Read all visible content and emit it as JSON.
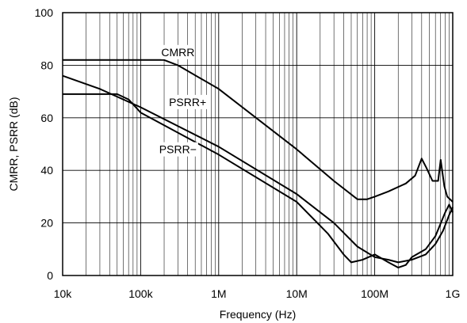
{
  "chart_data": {
    "type": "line",
    "title": "",
    "xlabel": "Frequency (Hz)",
    "ylabel": "CMRR, PSRR (dB)",
    "x_scale": "log",
    "xlim": [
      10000,
      1000000000
    ],
    "ylim": [
      0,
      100
    ],
    "grid": true,
    "x_ticks": [
      {
        "value": 10000,
        "label": "10k"
      },
      {
        "value": 100000,
        "label": "100k"
      },
      {
        "value": 1000000,
        "label": "1M"
      },
      {
        "value": 10000000,
        "label": "10M"
      },
      {
        "value": 100000000,
        "label": "100M"
      },
      {
        "value": 1000000000,
        "label": "1G"
      }
    ],
    "y_ticks": [
      {
        "value": 0,
        "label": "0"
      },
      {
        "value": 20,
        "label": "20"
      },
      {
        "value": 40,
        "label": "40"
      },
      {
        "value": 60,
        "label": "60"
      },
      {
        "value": 80,
        "label": "80"
      },
      {
        "value": 100,
        "label": "100"
      }
    ],
    "series": [
      {
        "name": "CMRR",
        "color": "#000000",
        "points": [
          [
            10000,
            82
          ],
          [
            100000,
            82
          ],
          [
            200000,
            82
          ],
          [
            300000,
            80
          ],
          [
            1000000,
            71
          ],
          [
            10000000,
            48
          ],
          [
            30000000,
            36
          ],
          [
            60000000,
            29
          ],
          [
            80000000,
            29
          ],
          [
            100000000,
            30
          ],
          [
            150000000,
            32
          ],
          [
            250000000,
            35
          ],
          [
            330000000,
            38
          ],
          [
            400000000,
            44.5
          ],
          [
            460000000,
            41
          ],
          [
            550000000,
            36
          ],
          [
            650000000,
            36
          ],
          [
            700000000,
            44
          ],
          [
            780000000,
            34
          ],
          [
            850000000,
            30
          ],
          [
            1000000000,
            28
          ]
        ]
      },
      {
        "name": "PSRR+",
        "color": "#000000",
        "points": [
          [
            10000,
            76
          ],
          [
            30000,
            71
          ],
          [
            100000,
            64
          ],
          [
            1000000,
            49
          ],
          [
            10000000,
            31
          ],
          [
            30000000,
            20
          ],
          [
            60000000,
            11
          ],
          [
            100000000,
            7
          ],
          [
            150000000,
            6
          ],
          [
            200000000,
            5
          ],
          [
            300000000,
            6
          ],
          [
            450000000,
            8
          ],
          [
            600000000,
            12
          ],
          [
            750000000,
            17
          ],
          [
            900000000,
            23
          ],
          [
            1000000000,
            26
          ]
        ]
      },
      {
        "name": "PSRR−",
        "color": "#000000",
        "points": [
          [
            10000,
            69
          ],
          [
            50000,
            69
          ],
          [
            70000,
            67
          ],
          [
            100000,
            62
          ],
          [
            1000000,
            46
          ],
          [
            10000000,
            28
          ],
          [
            25000000,
            16
          ],
          [
            40000000,
            8
          ],
          [
            50000000,
            5
          ],
          [
            70000000,
            6
          ],
          [
            100000000,
            8
          ],
          [
            150000000,
            5
          ],
          [
            200000000,
            3
          ],
          [
            250000000,
            4
          ],
          [
            300000000,
            7
          ],
          [
            450000000,
            10
          ],
          [
            600000000,
            15
          ],
          [
            800000000,
            24
          ],
          [
            900000000,
            27
          ],
          [
            1000000000,
            24
          ]
        ]
      }
    ],
    "annotations": [
      {
        "text": "CMRR",
        "x": 300000,
        "y": 85
      },
      {
        "text": "PSRR+",
        "x": 400000,
        "y": 66
      },
      {
        "text": "PSRR−",
        "x": 300000,
        "y": 48
      }
    ]
  }
}
